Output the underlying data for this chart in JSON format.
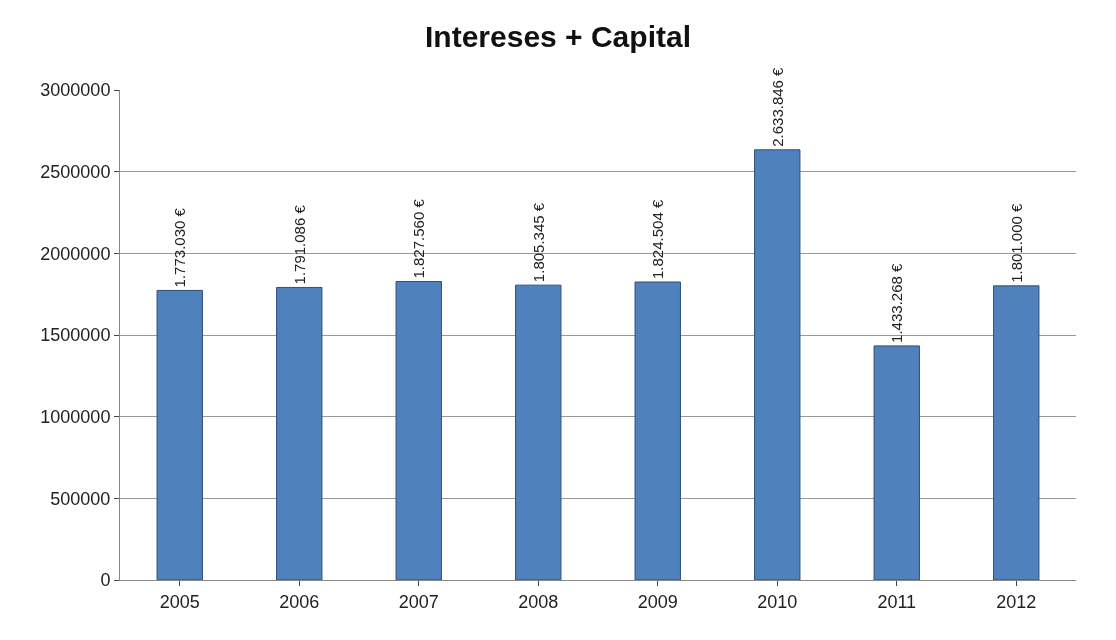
{
  "chart_data": {
    "type": "bar",
    "title": "Intereses + Capital",
    "categories": [
      "2005",
      "2006",
      "2007",
      "2008",
      "2009",
      "2010",
      "2011",
      "2012"
    ],
    "values": [
      1773030,
      1791086,
      1827560,
      1805345,
      1824504,
      2633846,
      1433268,
      1801000
    ],
    "value_labels": [
      "1.773.030 €",
      "1.791.086 €",
      "1.827.560 €",
      "1.805.345 €",
      "1.824.504 €",
      "2.633.846 €",
      "1.433.268 €",
      "1.801.000 €"
    ],
    "color": "#4f81bd",
    "ylim": [
      0,
      3000000
    ],
    "yticks": [
      0,
      500000,
      1000000,
      1500000,
      2000000,
      2500000,
      3000000
    ],
    "grid": "y"
  }
}
